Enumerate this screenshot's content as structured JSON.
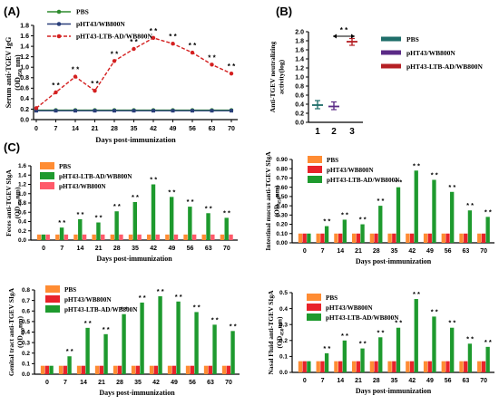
{
  "colors": {
    "pbs_line": "#2e8b2e",
    "pbs_mut_line": "#2a3f7a",
    "ltb_line": "#d42020",
    "b_pbs": "#1f6e6a",
    "b_mut": "#5b2a86",
    "b_ltb": "#b51f24",
    "bar_orange": "#ff8c33",
    "bar_red": "#e8232a",
    "bar_green": "#1e9a2e",
    "bar_pink": "#ff5a6a"
  },
  "panels": {
    "A": "(A)",
    "B": "(B)",
    "C": "(C)"
  },
  "chart_data": [
    {
      "id": "A",
      "type": "line",
      "ylabel_main": "Serum anti-TGEV IgG",
      "ylabel_sub": "(OD",
      "ylabel_sub_index": "450",
      "ylabel_sub_tail": " nm)",
      "xlabel": "Days post-immunization",
      "x": [
        0,
        7,
        14,
        21,
        28,
        35,
        42,
        49,
        56,
        63,
        70
      ],
      "xticks": [
        "0",
        "7",
        "14",
        "21",
        "28",
        "35",
        "42",
        "49",
        "56",
        "63",
        "70"
      ],
      "yticks": [
        "0.0",
        "0.2",
        "0.4",
        "0.6",
        "0.8",
        "1.0",
        "1.2",
        "1.4",
        "1.6",
        "1.8"
      ],
      "ylim": [
        0,
        1.8
      ],
      "series": [
        {
          "name": "PBS",
          "values": [
            0.18,
            0.18,
            0.18,
            0.18,
            0.18,
            0.18,
            0.18,
            0.18,
            0.18,
            0.18,
            0.18
          ]
        },
        {
          "name": "pHT43/WB800N",
          "values": [
            0.17,
            0.17,
            0.17,
            0.17,
            0.17,
            0.17,
            0.17,
            0.17,
            0.17,
            0.17,
            0.17
          ]
        },
        {
          "name": "pHT43-LTB-AD/WB800N",
          "values": [
            0.22,
            0.52,
            0.82,
            0.55,
            1.12,
            1.35,
            1.56,
            1.45,
            1.28,
            1.05,
            0.88
          ]
        }
      ],
      "sig": "* *"
    },
    {
      "id": "B",
      "type": "scatter",
      "ylabel_line1": "Anti-TGEV neutralizing",
      "ylabel_line2": "activity(log)",
      "categories": [
        "1",
        "2",
        "3"
      ],
      "yticks": [
        "0.0",
        "0.2",
        "0.4",
        "0.6",
        "0.8",
        "1.0",
        "1.2",
        "1.4",
        "1.6",
        "1.8",
        "2.0"
      ],
      "ylim": [
        0,
        2.0
      ],
      "series": [
        {
          "name": "PBS",
          "mean": 0.38,
          "low": 0.3,
          "high": 0.48
        },
        {
          "name": "pHT43/WB800N",
          "mean": 0.35,
          "low": 0.28,
          "high": 0.45
        },
        {
          "name": "pHT43-LTB-AD/WB800N",
          "mean": 1.78,
          "low": 1.7,
          "high": 1.85
        }
      ],
      "sig": "* *"
    },
    {
      "id": "C1",
      "type": "bar",
      "ylabel_main": "Feces anti-TGEV SIgA",
      "ylabel_sub": "(OD",
      "ylabel_sub_index": "450",
      "ylabel_sub_tail": "nm)",
      "xlabel": "Days post-immunization",
      "categories": [
        "0",
        "7",
        "14",
        "21",
        "28",
        "35",
        "42",
        "49",
        "56",
        "63",
        "70"
      ],
      "yticks": [
        "0.0",
        "0.2",
        "0.4",
        "0.6",
        "0.8",
        "1.0",
        "1.2",
        "1.4",
        "1.6"
      ],
      "ylim": [
        0,
        1.6
      ],
      "series": [
        {
          "name": "PBS",
          "color_key": "bar_orange",
          "values": [
            0.12,
            0.12,
            0.12,
            0.12,
            0.12,
            0.12,
            0.12,
            0.12,
            0.12,
            0.12,
            0.12
          ]
        },
        {
          "name": "pHT43-LTB-AD/WB800N",
          "color_key": "bar_green",
          "values": [
            0.12,
            0.27,
            0.45,
            0.38,
            0.62,
            0.82,
            1.2,
            0.93,
            0.72,
            0.58,
            0.48
          ]
        },
        {
          "name": "pHT43/WB800N",
          "color_key": "bar_pink",
          "values": [
            0.12,
            0.12,
            0.12,
            0.12,
            0.12,
            0.12,
            0.12,
            0.12,
            0.12,
            0.12,
            0.12
          ]
        }
      ],
      "sig": "* *"
    },
    {
      "id": "C2",
      "type": "bar",
      "ylabel_line1": "Intestinal mucus anti-TGEV SIgA",
      "ylabel_sub": "(OD",
      "ylabel_sub_index": "450",
      "ylabel_sub_tail": "nm)",
      "xlabel": "Days post-immunization",
      "categories": [
        "0",
        "7",
        "14",
        "21",
        "28",
        "35",
        "42",
        "49",
        "56",
        "63",
        "70"
      ],
      "yticks": [
        "0.00",
        "0.10",
        "0.20",
        "0.30",
        "0.40",
        "0.50",
        "0.60",
        "0.70",
        "0.80",
        "0.90"
      ],
      "ylim": [
        0,
        0.9
      ],
      "series": [
        {
          "name": "PBS",
          "color_key": "bar_orange",
          "values": [
            0.1,
            0.1,
            0.1,
            0.1,
            0.1,
            0.1,
            0.1,
            0.1,
            0.1,
            0.1,
            0.1
          ]
        },
        {
          "name": "pHT43/WB800N",
          "color_key": "bar_red",
          "values": [
            0.1,
            0.1,
            0.1,
            0.1,
            0.1,
            0.1,
            0.1,
            0.1,
            0.1,
            0.1,
            0.1
          ]
        },
        {
          "name": "pHT43-LTB-AD/WB800N",
          "color_key": "bar_green",
          "values": [
            0.1,
            0.18,
            0.25,
            0.2,
            0.4,
            0.6,
            0.78,
            0.68,
            0.55,
            0.35,
            0.28
          ]
        }
      ],
      "sig": "* *"
    },
    {
      "id": "C3",
      "type": "bar",
      "ylabel_main": "Genital tract anti-TGEV SIgA",
      "ylabel_sub": "(OD",
      "ylabel_sub_index": "450",
      "ylabel_sub_tail": "nm)",
      "xlabel": "Days post-immunization",
      "categories": [
        "0",
        "7",
        "14",
        "21",
        "28",
        "35",
        "42",
        "49",
        "56",
        "63",
        "70"
      ],
      "yticks": [
        "0.0",
        "0.1",
        "0.2",
        "0.3",
        "0.4",
        "0.5",
        "0.6",
        "0.7",
        "0.8"
      ],
      "ylim": [
        0,
        0.8
      ],
      "series": [
        {
          "name": "PBS",
          "color_key": "bar_orange",
          "values": [
            0.08,
            0.08,
            0.08,
            0.08,
            0.08,
            0.08,
            0.08,
            0.08,
            0.08,
            0.08,
            0.08
          ]
        },
        {
          "name": "pHT43/WB800N",
          "color_key": "bar_red",
          "values": [
            0.08,
            0.08,
            0.08,
            0.08,
            0.08,
            0.08,
            0.08,
            0.08,
            0.08,
            0.08,
            0.08
          ]
        },
        {
          "name": "pHT43-LTB-AD/WB800N",
          "color_key": "bar_green",
          "values": [
            0.08,
            0.17,
            0.44,
            0.38,
            0.57,
            0.68,
            0.74,
            0.69,
            0.59,
            0.47,
            0.41
          ]
        }
      ],
      "sig": "* *"
    },
    {
      "id": "C4",
      "type": "bar",
      "ylabel_main": "Nasal Fluid anti-TGEV SIgA",
      "ylabel_sub": "(OD",
      "ylabel_sub_index": "450",
      "ylabel_sub_tail": "nm)",
      "xlabel": "Days post-immunization",
      "categories": [
        "0",
        "7",
        "14",
        "21",
        "28",
        "35",
        "42",
        "49",
        "56",
        "63",
        "70"
      ],
      "yticks": [
        "0.0",
        "0.1",
        "0.2",
        "0.3",
        "0.4",
        "0.5"
      ],
      "ylim": [
        0,
        0.5
      ],
      "series": [
        {
          "name": "PBS",
          "color_key": "bar_orange",
          "values": [
            0.07,
            0.07,
            0.07,
            0.07,
            0.07,
            0.07,
            0.07,
            0.07,
            0.07,
            0.07,
            0.07
          ]
        },
        {
          "name": "pHT43/WB800N",
          "color_key": "bar_red",
          "values": [
            0.07,
            0.07,
            0.07,
            0.07,
            0.07,
            0.07,
            0.07,
            0.07,
            0.07,
            0.07,
            0.07
          ]
        },
        {
          "name": "pHT43-LTB-AD/WB800N",
          "color_key": "bar_green",
          "values": [
            0.07,
            0.12,
            0.2,
            0.15,
            0.22,
            0.28,
            0.46,
            0.35,
            0.28,
            0.18,
            0.16
          ]
        }
      ],
      "sig": "* *"
    }
  ]
}
